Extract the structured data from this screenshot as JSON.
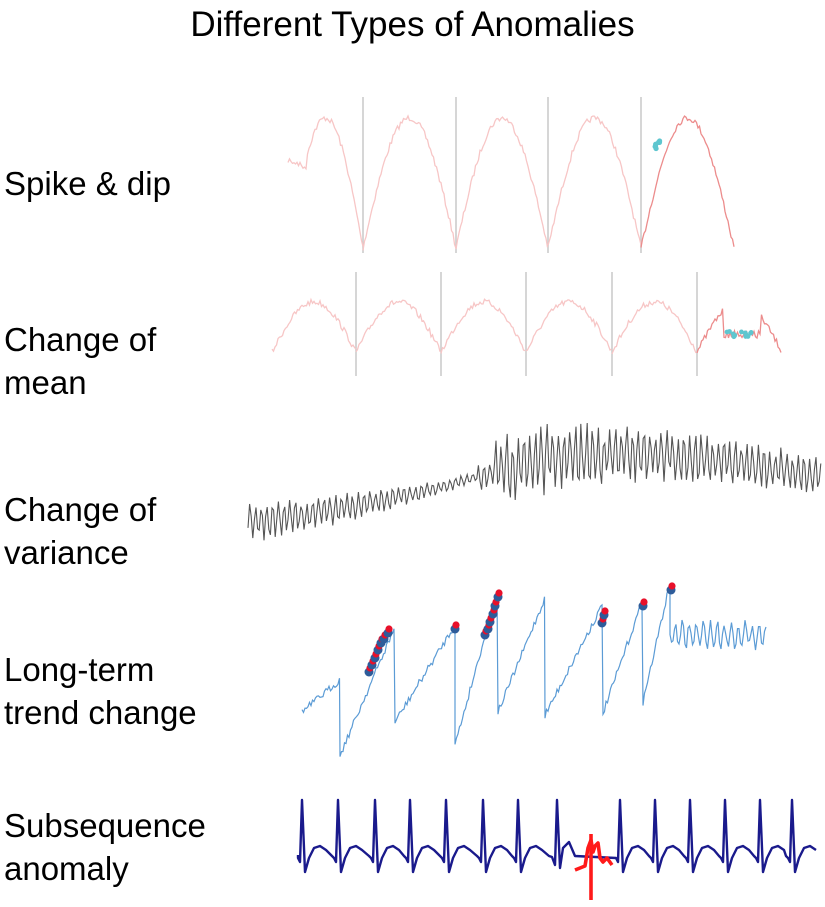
{
  "title": "Different Types of Anomalies",
  "rows": [
    {
      "label": "Spike & dip",
      "kind": "spike-dip",
      "colors": {
        "normal": "#f7c6c6",
        "recent": "#ec8c8c",
        "anomaly": "#5ec6cf",
        "separator": "#c8c8c8"
      }
    },
    {
      "label": "Change of\nmean",
      "kind": "change-of-mean",
      "colors": {
        "normal": "#f7c6c6",
        "recent": "#ec8c8c",
        "anomaly": "#5ec6cf",
        "separator": "#c8c8c8"
      }
    },
    {
      "label": "Change of\nvariance",
      "kind": "change-of-variance",
      "colors": {
        "line": "#555555"
      }
    },
    {
      "label": "Long-term\ntrend change",
      "kind": "long-term-trend-change",
      "colors": {
        "line": "#5b9bd5",
        "point": "#2e5c9a",
        "highlight": "#e8102a"
      }
    },
    {
      "label": "Subsequence\nanomaly",
      "kind": "subsequence-anomaly",
      "colors": {
        "line": "#1a1a8c",
        "anomaly": "#ff1a1a"
      }
    }
  ]
}
